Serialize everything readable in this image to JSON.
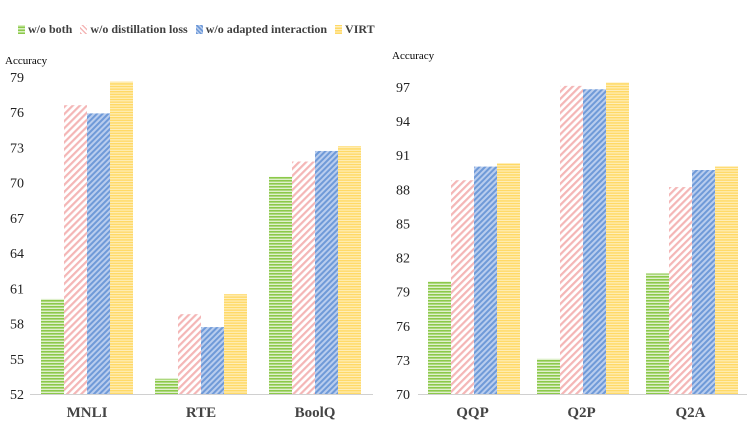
{
  "legend": [
    "w/o both",
    "w/o distillation loss",
    "w/o adapted interaction",
    "VIRT"
  ],
  "colors": {
    "w/o both": "#8cc94a",
    "w/o distillation loss": "#f4b6b6",
    "w/o adapted interaction": "#6f9ad8",
    "VIRT": "#ffd966"
  },
  "chart_data": [
    {
      "type": "bar",
      "ylabel": "Accuracy",
      "ylim": [
        52,
        79
      ],
      "yticks": [
        "79",
        "76",
        "73",
        "70",
        "67",
        "64",
        "61",
        "58",
        "55",
        "52"
      ],
      "categories": [
        "MNLI",
        "RTE",
        "BoolQ"
      ],
      "series": [
        {
          "name": "w/o both",
          "values": [
            60.1,
            53.3,
            70.5
          ]
        },
        {
          "name": "w/o distillation loss",
          "values": [
            76.6,
            58.8,
            71.8
          ]
        },
        {
          "name": "w/o adapted interaction",
          "values": [
            75.9,
            57.7,
            72.7
          ]
        },
        {
          "name": "VIRT",
          "values": [
            78.6,
            60.5,
            73.1
          ]
        }
      ]
    },
    {
      "type": "bar",
      "ylabel": "Accuracy",
      "ylim": [
        70,
        97
      ],
      "yticks": [
        "97",
        "94",
        "91",
        "88",
        "85",
        "82",
        "79",
        "76",
        "73",
        "70"
      ],
      "categories": [
        "QQP",
        "Q2P",
        "Q2A"
      ],
      "series": [
        {
          "name": "w/o both",
          "values": [
            79.9,
            73.1,
            80.6
          ]
        },
        {
          "name": "w/o distillation loss",
          "values": [
            88.8,
            97.1,
            88.2
          ]
        },
        {
          "name": "w/o adapted interaction",
          "values": [
            90.0,
            96.8,
            89.7
          ]
        },
        {
          "name": "VIRT",
          "values": [
            90.3,
            97.4,
            90.0
          ]
        }
      ]
    }
  ]
}
